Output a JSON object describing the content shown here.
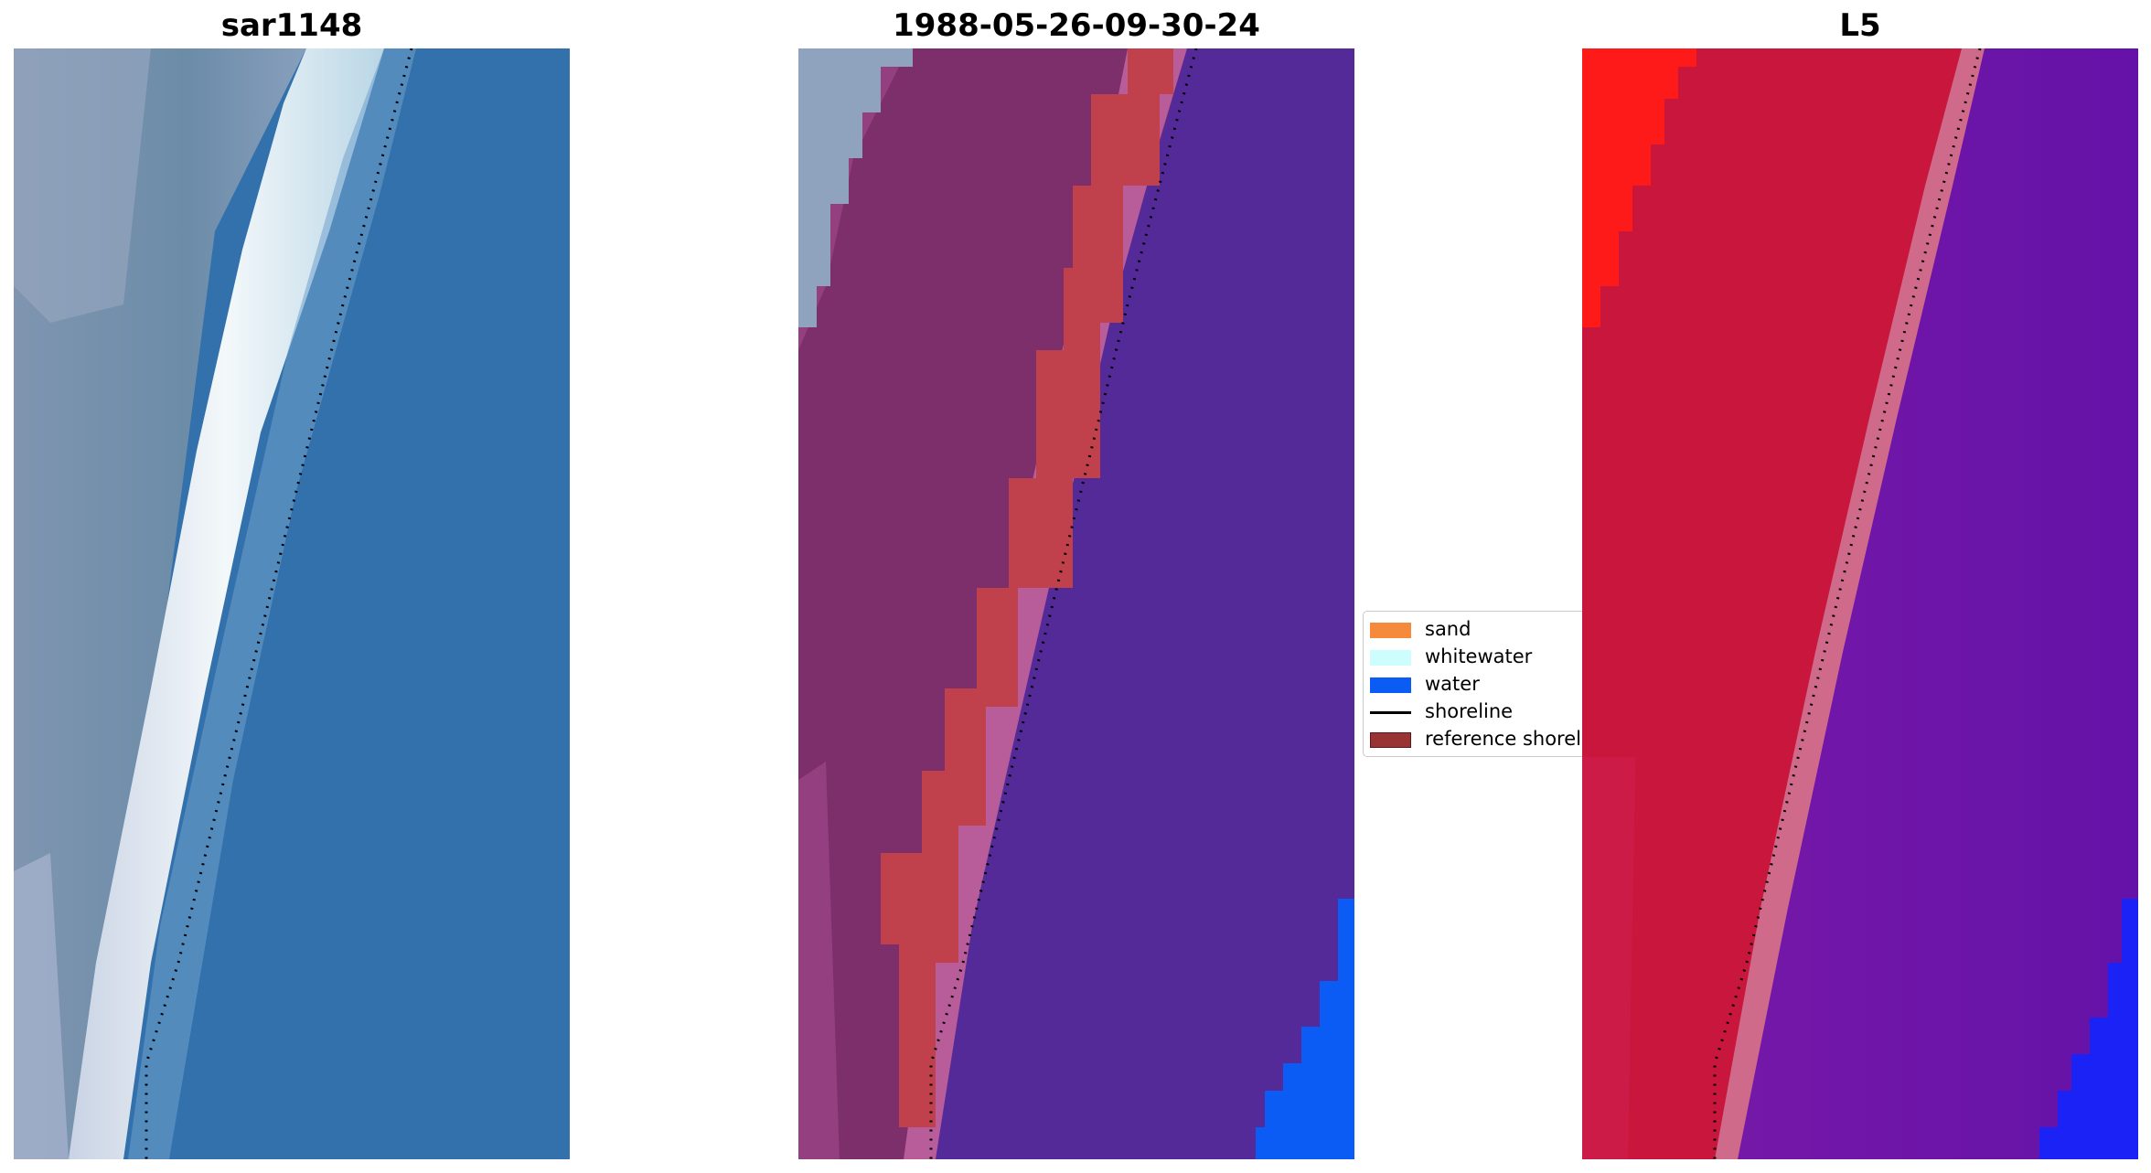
{
  "panels": [
    {
      "title": "sar1148"
    },
    {
      "title": "1988-05-26-09-30-24"
    },
    {
      "title": "L5"
    }
  ],
  "legend": {
    "items": [
      {
        "label": "sand",
        "color": "#f58a3c",
        "kind": "patch"
      },
      {
        "label": "whitewater",
        "color": "#cdfdfd",
        "kind": "patch"
      },
      {
        "label": "water",
        "color": "#0a5cf5",
        "kind": "patch"
      },
      {
        "label": "shoreline",
        "color": "#000000",
        "kind": "line"
      },
      {
        "label": "reference shoreline",
        "color": "#9a3333",
        "kind": "patch"
      }
    ]
  },
  "colors": {
    "rgb_land": "#6c8ca8",
    "rgb_light_land": "#a7b4cc",
    "rgb_whitewater": "#eef4f6",
    "rgb_water": "#3271ac",
    "class_land": "#7d2f6c",
    "class_land_light": "#943f80",
    "class_reference_band": "#c0404c",
    "class_pink_edge": "#b85c9a",
    "class_ocean": "#542a98",
    "class_water": "#0a5cf5",
    "index_land": "#c8163c",
    "index_bright_land": "#ff1a1a",
    "index_band": "#d06a8a",
    "index_ocean": "#6a14a8",
    "index_deep_water": "#1a22f5"
  }
}
